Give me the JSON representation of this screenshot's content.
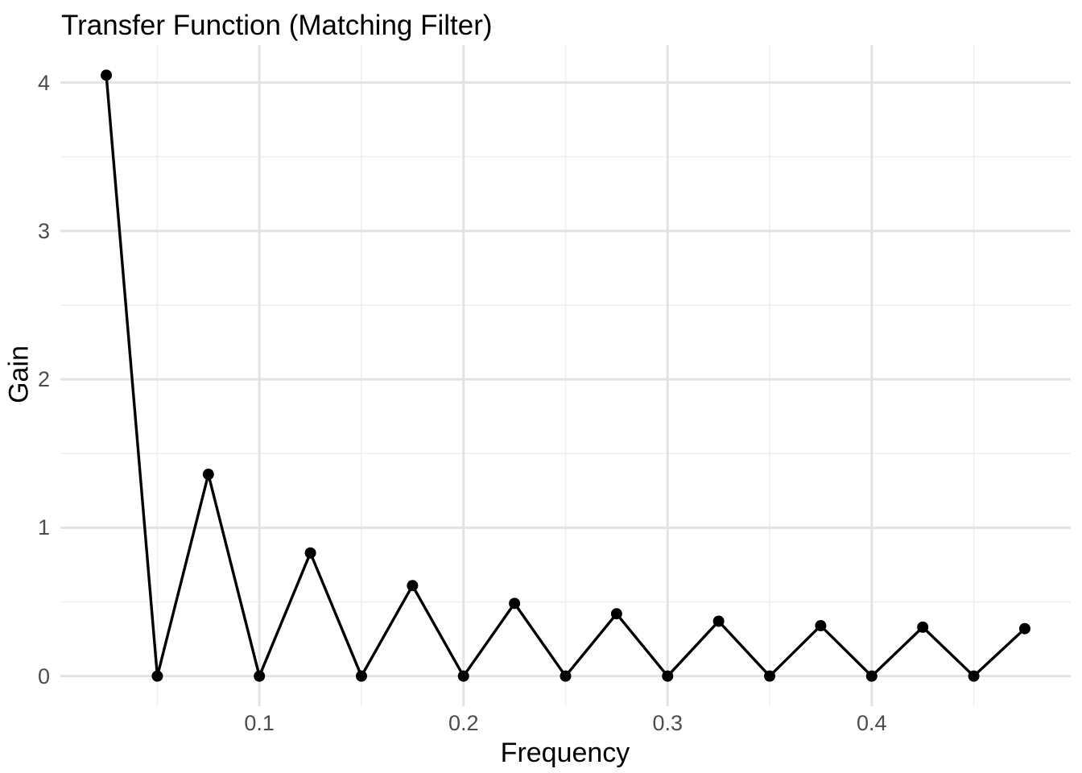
{
  "chart_data": {
    "type": "line",
    "title": "Transfer Function (Matching Filter)",
    "xlabel": "Frequency",
    "ylabel": "Gain",
    "x": [
      0.025,
      0.05,
      0.075,
      0.1,
      0.125,
      0.15,
      0.175,
      0.2,
      0.225,
      0.25,
      0.275,
      0.3,
      0.325,
      0.35,
      0.375,
      0.4,
      0.425,
      0.45,
      0.475
    ],
    "y": [
      4.05,
      0,
      1.36,
      0,
      0.83,
      0,
      0.61,
      0,
      0.49,
      0,
      0.42,
      0,
      0.37,
      0,
      0.34,
      0,
      0.33,
      0,
      0.32
    ],
    "x_ticks": [
      0.1,
      0.2,
      0.3,
      0.4
    ],
    "x_tick_labels": [
      "0.1",
      "0.2",
      "0.3",
      "0.4"
    ],
    "x_minor_ticks": [
      0.05,
      0.15,
      0.25,
      0.35,
      0.45
    ],
    "y_ticks": [
      0,
      1,
      2,
      3,
      4
    ],
    "y_tick_labels": [
      "0",
      "1",
      "2",
      "3",
      "4"
    ],
    "y_minor_ticks": [
      0.5,
      1.5,
      2.5,
      3.5
    ],
    "xlim": [
      0.0025,
      0.4975
    ],
    "ylim": [
      -0.2025,
      4.2525
    ],
    "grid": true,
    "legend": false,
    "colors": {
      "line": "#000000",
      "point": "#000000",
      "grid_major": "#e3e3e3",
      "grid_minor": "#efefef",
      "tick_text": "#4d4d4d",
      "title_text": "#000000",
      "background": "#ffffff"
    }
  }
}
